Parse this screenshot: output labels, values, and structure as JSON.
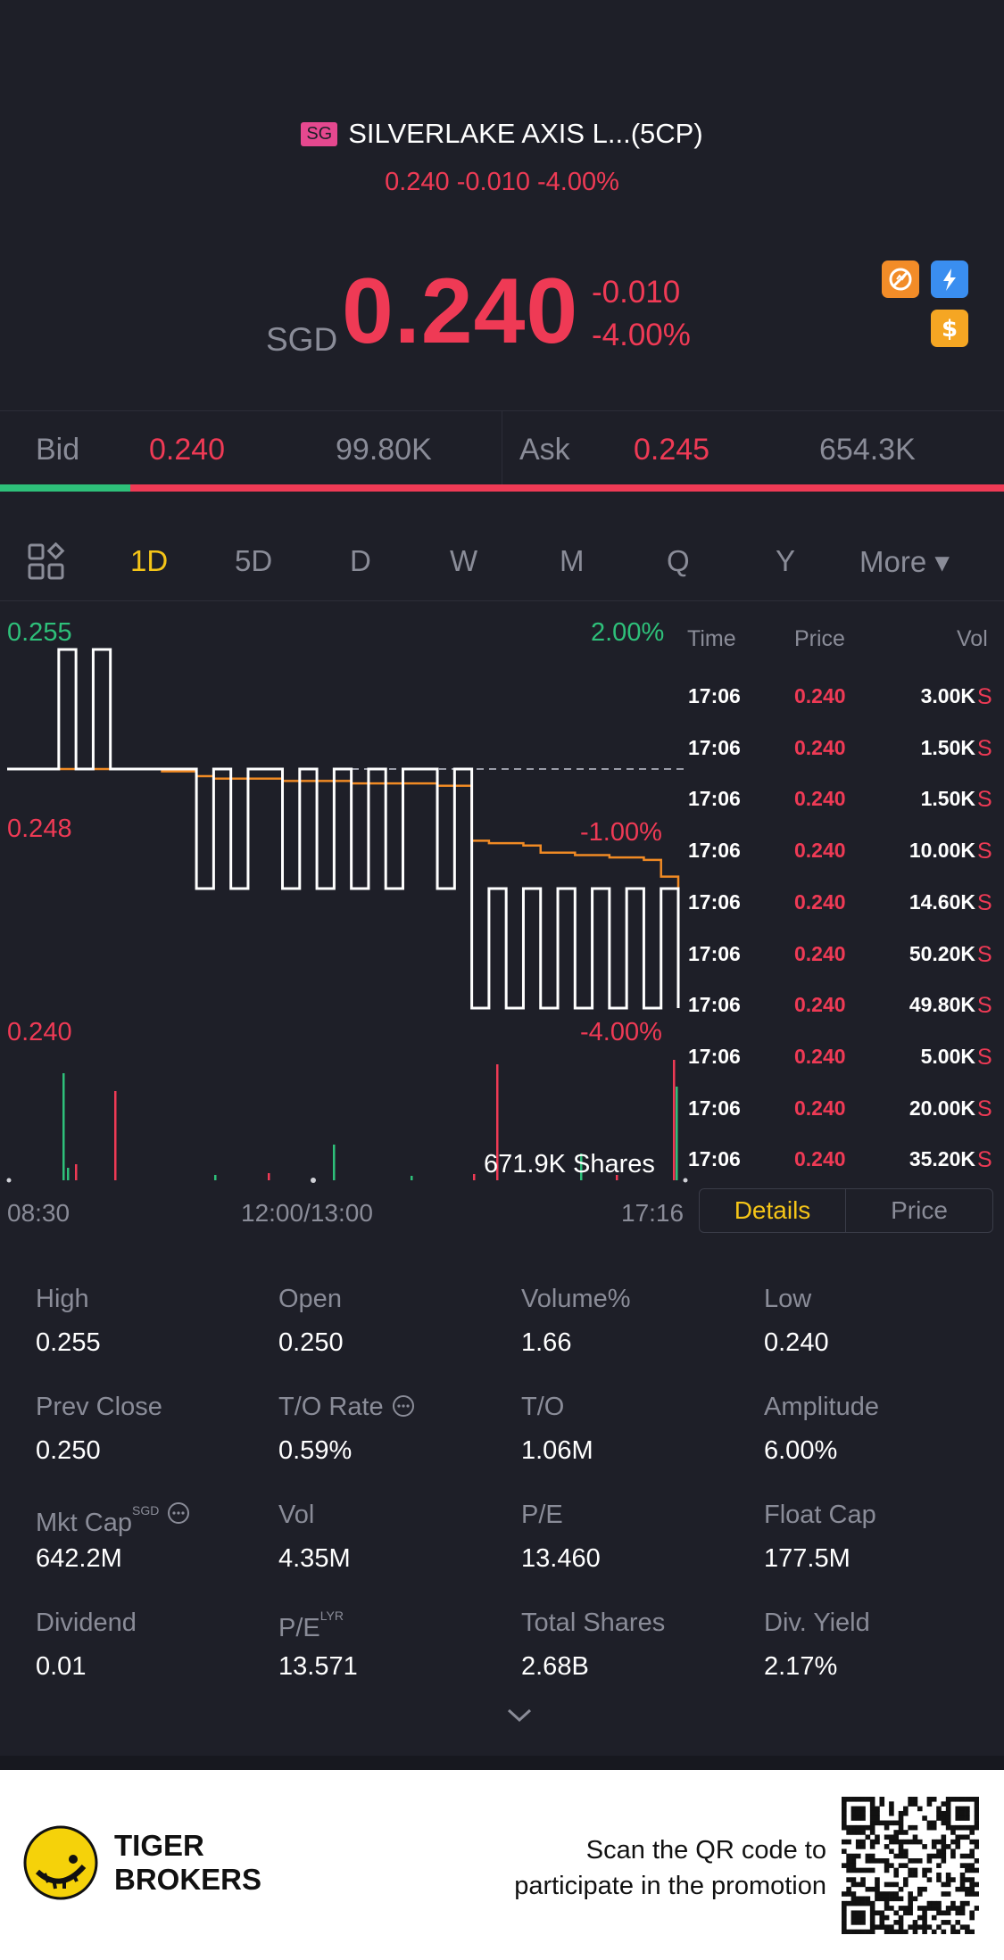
{
  "header": {
    "market_badge": "SG",
    "title": "SILVERLAKE AXIS L...(5CP)",
    "subtitle": "0.240 -0.010 -4.00%"
  },
  "quote": {
    "currency": "SGD",
    "price": "0.240",
    "change": "-0.010",
    "change_pct": "-4.00%"
  },
  "icons": [
    "no-short-icon",
    "lightning-icon",
    "dollar-icon"
  ],
  "bidask": {
    "bid_label": "Bid",
    "bid_price": "0.240",
    "bid_size": "99.80K",
    "ask_label": "Ask",
    "ask_price": "0.245",
    "ask_size": "654.3K",
    "bid_ratio": 0.13
  },
  "periods": [
    "1D",
    "5D",
    "D",
    "W",
    "M",
    "Q",
    "Y",
    "More ▾"
  ],
  "active_period": "1D",
  "chart": {
    "y_top_left": "0.255",
    "y_mid_left": "0.248",
    "y_bot_left": "0.240",
    "y_top_right": "2.00%",
    "y_mid_right": "-1.00%",
    "y_bot_right": "-4.00%",
    "volume_label": "671.9K Shares",
    "x_labels": [
      "08:30",
      "12:00/13:00",
      "17:16"
    ]
  },
  "chart_data": {
    "type": "line",
    "ylim": [
      0.24,
      0.255
    ],
    "series": [
      {
        "values": [
          0.25,
          0.25,
          0.25,
          0.255,
          0.25,
          0.255,
          0.25,
          0.25,
          0.25,
          0.25,
          0.25,
          0.245,
          0.25,
          0.245,
          0.25,
          0.25,
          0.245,
          0.25,
          0.245,
          0.25,
          0.245,
          0.25,
          0.245,
          0.25,
          0.25,
          0.245,
          0.25,
          0.24,
          0.245,
          0.24,
          0.245,
          0.24,
          0.245,
          0.24,
          0.245,
          0.24,
          0.245,
          0.24,
          0.245,
          0.24
        ]
      },
      {
        "values": [
          0.25,
          0.25,
          0.25,
          0.25,
          0.25,
          0.25,
          0.25,
          0.25,
          0.25,
          0.2499,
          0.2499,
          0.2497,
          0.2496,
          0.2496,
          0.2496,
          0.2496,
          0.2495,
          0.2495,
          0.2495,
          0.2495,
          0.2494,
          0.2494,
          0.2494,
          0.2494,
          0.2494,
          0.2493,
          0.2493,
          0.247,
          0.2469,
          0.2469,
          0.2468,
          0.2465,
          0.2465,
          0.2464,
          0.2464,
          0.2463,
          0.2463,
          0.2462,
          0.2455,
          0.2445
        ]
      }
    ],
    "prev_close": 0.25
  },
  "trades": {
    "headers": [
      "Time",
      "Price",
      "Vol"
    ],
    "rows": [
      {
        "time": "17:06",
        "price": "0.240",
        "vol": "3.00K",
        "side": "S"
      },
      {
        "time": "17:06",
        "price": "0.240",
        "vol": "1.50K",
        "side": "S"
      },
      {
        "time": "17:06",
        "price": "0.240",
        "vol": "1.50K",
        "side": "S"
      },
      {
        "time": "17:06",
        "price": "0.240",
        "vol": "10.00K",
        "side": "S"
      },
      {
        "time": "17:06",
        "price": "0.240",
        "vol": "14.60K",
        "side": "S"
      },
      {
        "time": "17:06",
        "price": "0.240",
        "vol": "50.20K",
        "side": "S"
      },
      {
        "time": "17:06",
        "price": "0.240",
        "vol": "49.80K",
        "side": "S"
      },
      {
        "time": "17:06",
        "price": "0.240",
        "vol": "5.00K",
        "side": "S"
      },
      {
        "time": "17:06",
        "price": "0.240",
        "vol": "20.00K",
        "side": "S"
      },
      {
        "time": "17:06",
        "price": "0.240",
        "vol": "35.20K",
        "side": "S"
      }
    ]
  },
  "tabs": {
    "details": "Details",
    "price": "Price"
  },
  "stats": [
    {
      "label": "High",
      "value": "0.255"
    },
    {
      "label": "Open",
      "value": "0.250"
    },
    {
      "label": "Volume%",
      "value": "1.66"
    },
    {
      "label": "Low",
      "value": "0.240"
    },
    {
      "label": "Prev Close",
      "value": "0.250"
    },
    {
      "label": "T/O Rate",
      "value": "0.59%"
    },
    {
      "label": "T/O",
      "value": "1.06M"
    },
    {
      "label": "Amplitude",
      "value": "6.00%"
    },
    {
      "label": "Mkt Cap",
      "value": "642.2M",
      "sup": "SGD"
    },
    {
      "label": "Vol",
      "value": "4.35M"
    },
    {
      "label": "P/E",
      "value": "13.460"
    },
    {
      "label": "Float Cap",
      "value": "177.5M"
    },
    {
      "label": "Dividend",
      "value": "0.01"
    },
    {
      "label": "P/E",
      "value": "13.571",
      "sup": "LYR"
    },
    {
      "label": "Total Shares",
      "value": "2.68B"
    },
    {
      "label": "Div. Yield",
      "value": "2.17%"
    }
  ],
  "footer": {
    "brand_line1": "TIGER",
    "brand_line2": "BROKERS",
    "promo_line1": "Scan the QR code to",
    "promo_line2": "participate in the promotion"
  }
}
